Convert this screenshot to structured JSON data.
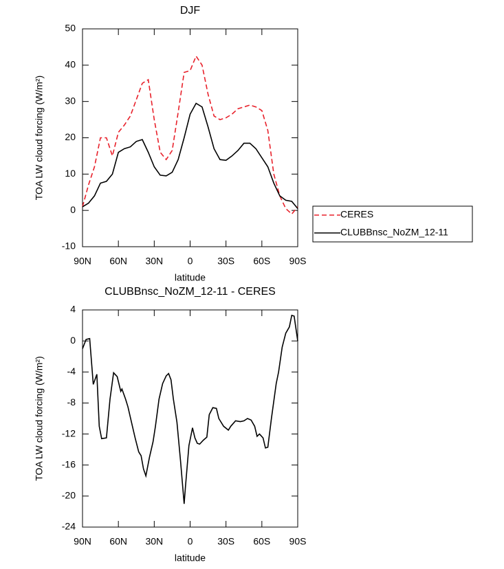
{
  "chart_data": [
    {
      "type": "line",
      "title": "DJF",
      "xlabel": "latitude",
      "ylabel": "TOA LW cloud forcing (W/m²)",
      "x": [
        90,
        85,
        80,
        75,
        70,
        65,
        60,
        55,
        50,
        45,
        40,
        35,
        30,
        25,
        20,
        15,
        10,
        5,
        0,
        -5,
        -10,
        -15,
        -20,
        -25,
        -30,
        -35,
        -40,
        -45,
        -50,
        -55,
        -60,
        -65,
        -70,
        -75,
        -80,
        -85,
        -90
      ],
      "series": [
        {
          "name": "CERES",
          "color": "#e8202a",
          "dash": "dashed",
          "values": [
            1,
            7,
            12,
            20,
            20,
            15,
            21.5,
            23.5,
            26,
            30.5,
            35,
            36,
            25,
            16,
            14,
            16.5,
            27,
            38,
            38.5,
            42.5,
            40,
            32,
            26,
            25,
            25.5,
            26.5,
            28,
            28.5,
            29,
            28.5,
            27.5,
            22,
            10,
            4,
            0.5,
            -1,
            1
          ]
        },
        {
          "name": "CLUBBnsc_NoZM_12-11",
          "color": "#000000",
          "dash": "solid",
          "values": [
            1,
            2,
            4,
            7.5,
            8,
            10,
            16,
            17,
            17.5,
            19,
            19.5,
            16,
            12,
            9.7,
            9.5,
            10.5,
            14,
            20,
            26.5,
            29.5,
            28.5,
            23,
            17,
            14,
            13.8,
            15,
            16.5,
            18.5,
            18.5,
            17,
            14.5,
            12,
            7.5,
            4,
            2.8,
            2.5,
            0.5
          ]
        }
      ],
      "xlim": [
        90,
        -90
      ],
      "xticks": [
        {
          "value": 90,
          "label": "90N"
        },
        {
          "value": 60,
          "label": "60N"
        },
        {
          "value": 30,
          "label": "30N"
        },
        0,
        {
          "value": -30,
          "label": "30S"
        },
        {
          "value": -60,
          "label": "60S"
        },
        {
          "value": -90,
          "label": "90S"
        }
      ],
      "ylim": [
        -10,
        50
      ],
      "yticks": [
        -10,
        0,
        10,
        20,
        30,
        40,
        50
      ],
      "legend": "right"
    },
    {
      "type": "line",
      "title": "CLUBBnsc_NoZM_12-11 - CERES",
      "xlabel": "latitude",
      "ylabel": "TOA LW cloud forcing (W/m²)",
      "x": [
        90,
        87,
        84,
        81,
        78,
        76,
        74,
        70,
        67,
        64,
        61,
        58,
        57,
        54,
        52,
        49,
        46,
        43,
        41,
        39,
        37,
        34,
        31,
        29,
        26,
        23,
        20,
        18,
        16,
        14,
        11,
        8,
        5,
        4,
        1,
        -2,
        -4,
        -6,
        -8,
        -11,
        -14,
        -16,
        -19,
        -22,
        -24,
        -28,
        -32,
        -34,
        -38,
        -42,
        -45,
        -48,
        -51,
        -54,
        -56,
        -58,
        -61,
        -63,
        -65,
        -68,
        -72,
        -74,
        -77,
        -80,
        -83,
        -85,
        -87,
        -90
      ],
      "values": [
        -1,
        0.2,
        0.3,
        -5.6,
        -4.3,
        -11,
        -12.6,
        -12.5,
        -7.5,
        -4.1,
        -4.6,
        -6.5,
        -6.2,
        -7.5,
        -8.5,
        -10.5,
        -12.5,
        -14.3,
        -14.8,
        -16.5,
        -17.4,
        -15,
        -13,
        -11,
        -7.5,
        -5.5,
        -4.5,
        -4.2,
        -5,
        -7.5,
        -10.5,
        -15.5,
        -21,
        -19,
        -13.5,
        -11.2,
        -12.5,
        -13.2,
        -13.3,
        -12.8,
        -12.4,
        -9.5,
        -8.6,
        -8.7,
        -10,
        -11,
        -11.5,
        -11,
        -10.3,
        -10.4,
        -10.3,
        -10,
        -10.2,
        -11,
        -12.3,
        -12,
        -12.5,
        -13.8,
        -13.7,
        -10,
        -5.5,
        -4,
        -0.8,
        1,
        1.8,
        3.3,
        3.2,
        0
      ],
      "color": "#000000",
      "xlim": [
        90,
        -90
      ],
      "xticks": [
        {
          "value": 90,
          "label": "90N"
        },
        {
          "value": 60,
          "label": "60N"
        },
        {
          "value": 30,
          "label": "30N"
        },
        0,
        {
          "value": -30,
          "label": "30S"
        },
        {
          "value": -60,
          "label": "60S"
        },
        {
          "value": -90,
          "label": "90S"
        }
      ],
      "ylim": [
        -24,
        4
      ],
      "yticks": [
        -24,
        -20,
        -16,
        -12,
        -8,
        -4,
        0,
        4
      ]
    }
  ]
}
